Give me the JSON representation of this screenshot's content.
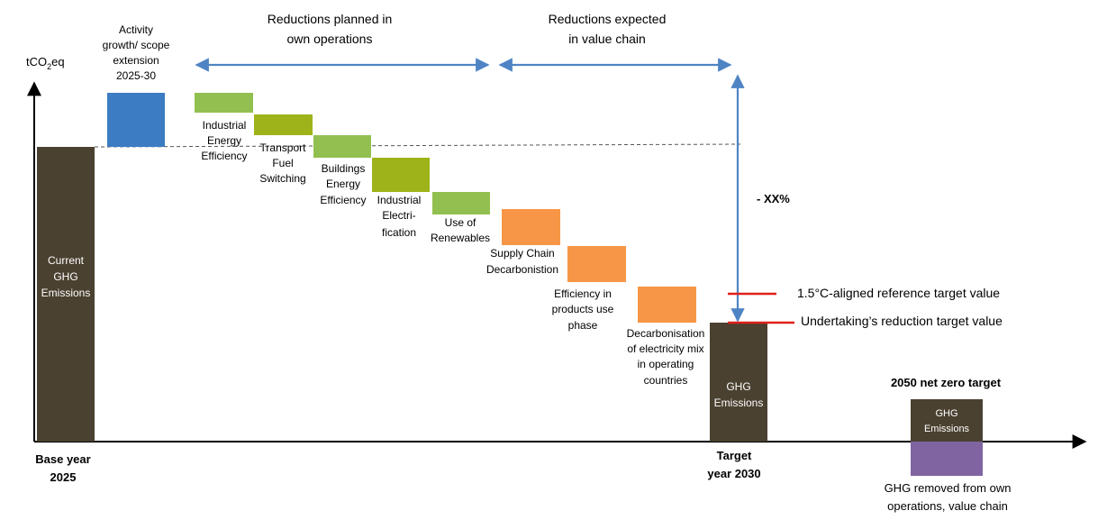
{
  "colors": {
    "dark": "#4a4130",
    "blue": "#3b7cc3",
    "light_green": "#92c050",
    "olive_green": "#9eb319",
    "orange": "#f79646",
    "purple": "#8064a2",
    "red": "#e0201b",
    "arrow_blue": "#4f84c4",
    "axis": "#000000"
  },
  "axis": {
    "y_label_main": "tCO",
    "y_label_sub": "2",
    "y_label_end": "eq"
  },
  "header": {
    "planned": [
      "Reductions planned in",
      "own operations"
    ],
    "expected": [
      "Reductions expected",
      "in value chain"
    ]
  },
  "bars": {
    "base": [
      "Current",
      "GHG",
      "Emissions"
    ],
    "target": [
      "GHG",
      "Emissions"
    ],
    "net_zero": [
      "GHG",
      "Emissions"
    ]
  },
  "steps": [
    {
      "id": "activity-growth",
      "label": [
        "Activity",
        "growth/ scope",
        "extension",
        "2025-30"
      ]
    },
    {
      "id": "industrial-energy-efficiency",
      "label": [
        "Industrial",
        "Energy",
        "Efficiency"
      ]
    },
    {
      "id": "transport-fuel-switching",
      "label": [
        "Transport",
        "Fuel",
        "Switching"
      ]
    },
    {
      "id": "buildings-energy-efficiency",
      "label": [
        "Buildings",
        "Energy",
        "Efficiency"
      ]
    },
    {
      "id": "industrial-electrification",
      "label": [
        "Industrial",
        "Electri-",
        "fication"
      ]
    },
    {
      "id": "use-of-renewables",
      "label": [
        "Use of",
        "Renewables"
      ]
    },
    {
      "id": "supply-chain-decarbonisation",
      "label": [
        "Supply Chain",
        "Decarbonistion"
      ]
    },
    {
      "id": "efficiency-products-use",
      "label": [
        "Efficiency in",
        "products use",
        "phase"
      ]
    },
    {
      "id": "decarbonisation-electricity",
      "label": [
        "Decarbonisation",
        "of electricity mix",
        "in operating",
        "countries"
      ]
    }
  ],
  "reduction_label": "- XX%",
  "targets": {
    "reference": "1.5°C-aligned reference target value",
    "undertaking": "Undertaking’s reduction target value"
  },
  "x_labels": {
    "base": [
      "Base year",
      "2025"
    ],
    "target": [
      "Target",
      "year 2030"
    ]
  },
  "net_zero_title": "2050 net zero target",
  "removed_label": [
    "GHG removed  from own",
    "operations, value chain"
  ]
}
